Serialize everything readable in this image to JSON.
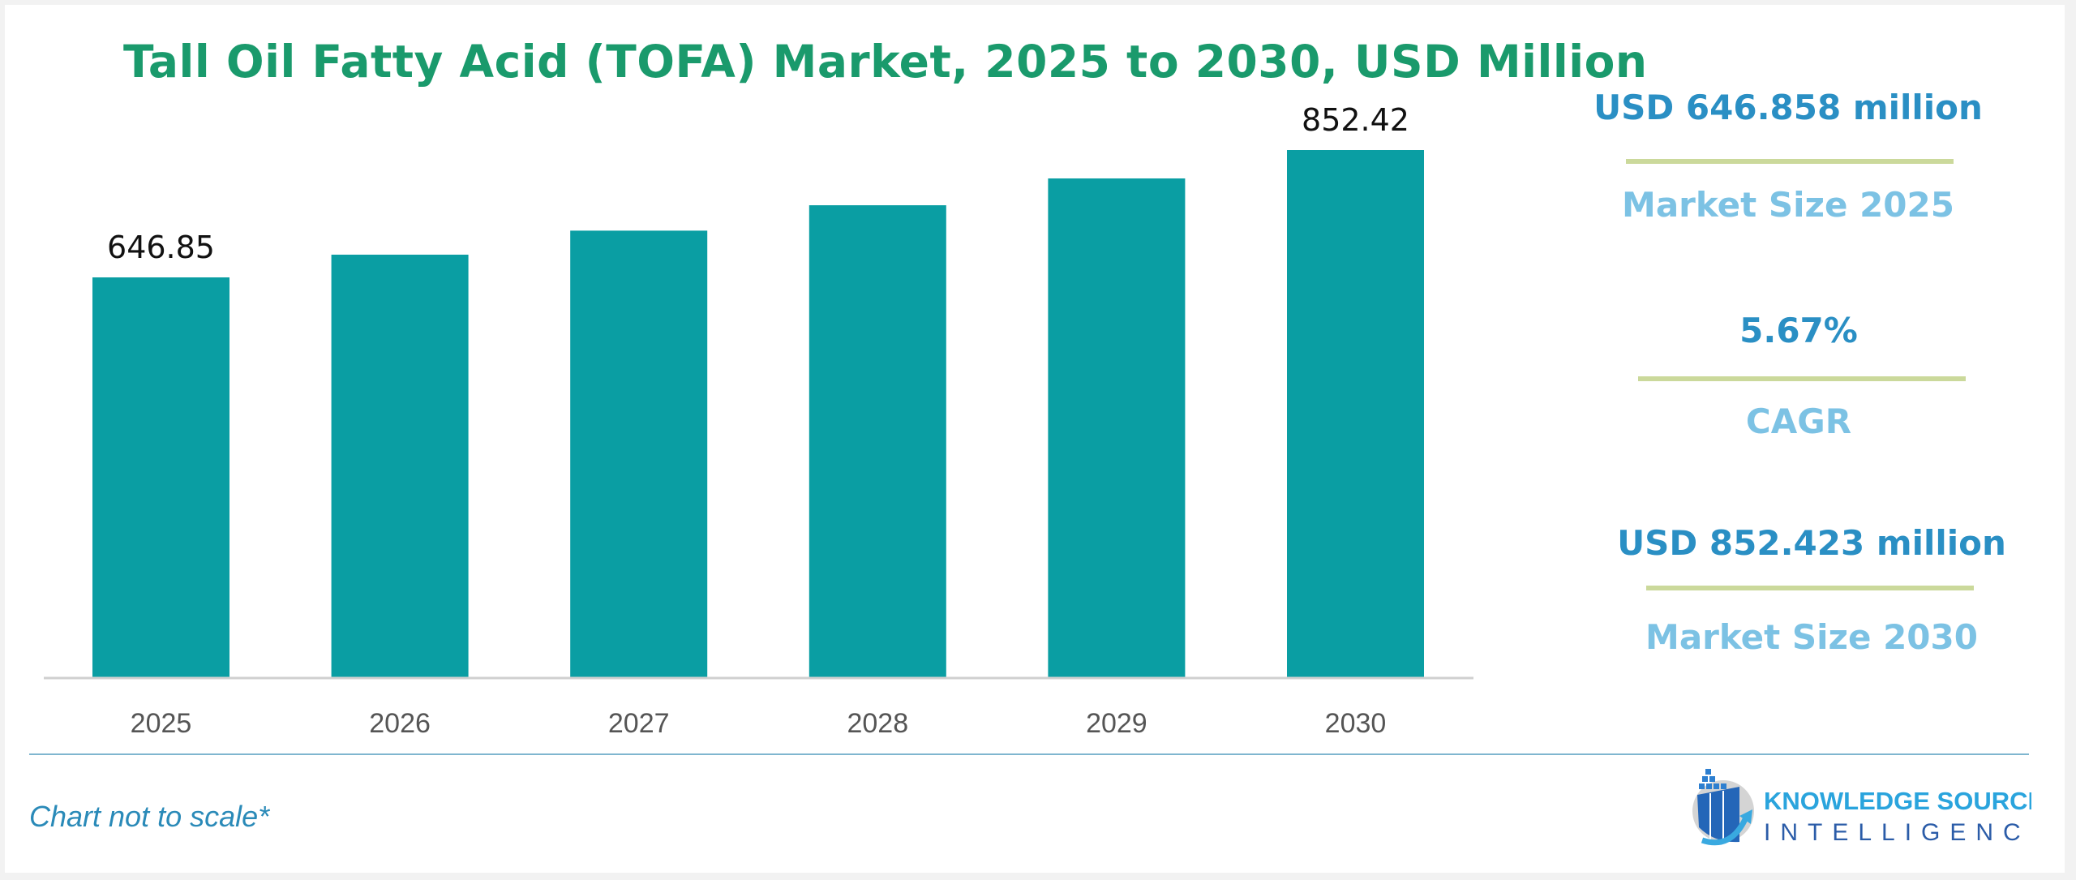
{
  "chart_data": {
    "type": "bar",
    "title": "Tall Oil Fatty Acid (TOFA) Market, 2025 to 2030, USD Million",
    "categories": [
      "2025",
      "2026",
      "2027",
      "2028",
      "2029",
      "2030"
    ],
    "values": [
      646.85,
      683.5,
      722.3,
      763.3,
      806.6,
      852.42
    ],
    "data_labels": [
      "646.85",
      "",
      "",
      "",
      "",
      "852.42"
    ],
    "xlabel": "",
    "ylabel": "",
    "ylim": [
      0,
      852.42
    ],
    "grid": false,
    "bar_color": "#0a9ea3"
  },
  "kpis": [
    {
      "value": "USD 646.858 million",
      "label": "Market Size 2025"
    },
    {
      "value": "5.67%",
      "label": "CAGR"
    },
    {
      "value": "USD 852.423 million",
      "label": "Market Size 2030"
    }
  ],
  "footnote": "Chart not to scale*",
  "logo": {
    "line1": "KNOWLEDGE SOURCING",
    "line2": "INTELLIGENCE"
  },
  "colors": {
    "title": "#1a9a6c",
    "kpi_value": "#2a8fc4",
    "kpi_label": "#7cc2e4",
    "divider": "#cbd99b"
  }
}
